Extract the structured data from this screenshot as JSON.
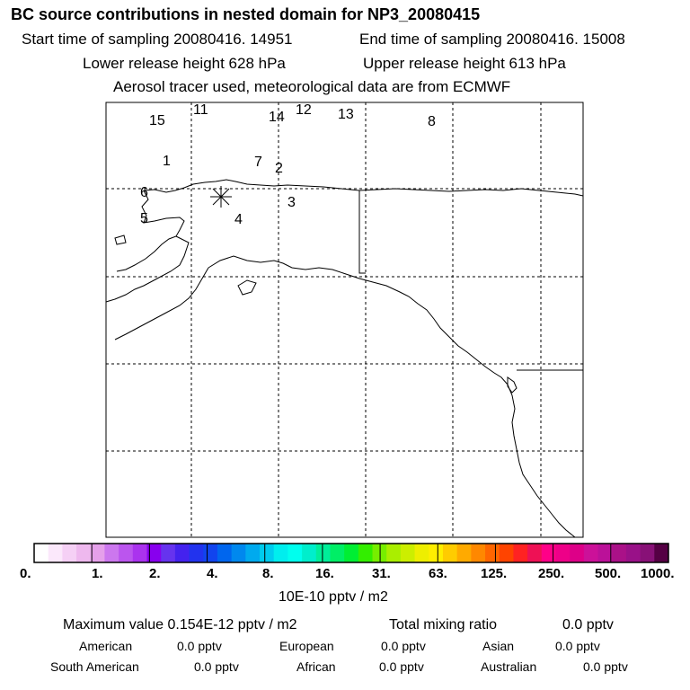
{
  "header": {
    "title": "BC  source contributions in nested domain for NP3_20080415",
    "start_time": "Start time of sampling 20080416. 14951",
    "end_time": "End time of sampling 20080416. 15008",
    "lower_height": "Lower release height  628 hPa",
    "upper_height": "Upper release height  613 hPa",
    "tracer_info": "Aerosol tracer used, meteorological data are from ECMWF"
  },
  "map": {
    "receptor_marker": "asterisk",
    "labels": [
      "15",
      "11",
      "14",
      "12",
      "13",
      "8",
      "1",
      "7",
      "2",
      "6",
      "3",
      "5",
      "4"
    ]
  },
  "colorbar": {
    "colors": [
      "#ffffff",
      "#fbe8fb",
      "#f5d0f5",
      "#eeb8ee",
      "#e5a0ea",
      "#cc77ee",
      "#bb55ee",
      "#aa33ee",
      "#8800ee",
      "#6633ee",
      "#4422ee",
      "#2233ee",
      "#1144ee",
      "#0066ee",
      "#0088ee",
      "#00aaee",
      "#00ccee",
      "#00eeee",
      "#00ffee",
      "#00eecc",
      "#00ee99",
      "#00ee66",
      "#00ee33",
      "#33ee00",
      "#77ee00",
      "#aaee00",
      "#ccee00",
      "#eeee00",
      "#ffee00",
      "#ffcc00",
      "#ffaa00",
      "#ff8800",
      "#ff6600",
      "#ff4400",
      "#ff2222",
      "#ee1155",
      "#ff0088",
      "#ee0088",
      "#dd0088",
      "#cc1199",
      "#bb1199",
      "#aa1188",
      "#991188",
      "#881177",
      "#550044"
    ],
    "ticks": [
      "0.",
      "1.",
      "2.",
      "4.",
      "8.",
      "16.",
      "31.",
      "63.",
      "125.",
      "250.",
      "500.",
      "1000."
    ],
    "unit": "10E-10 pptv / m2"
  },
  "stats": {
    "max_value": "Maximum value  0.154E-12 pptv / m2",
    "total_label": "Total mixing ratio",
    "total_value": "0.0 pptv",
    "american_label": "American",
    "american_value": "0.0 pptv",
    "european_label": "European",
    "european_value": "0.0 pptv",
    "asian_label": "Asian",
    "asian_value": "0.0 pptv",
    "south_american_label": "South American",
    "south_american_value": "0.0 pptv",
    "african_label": "African",
    "african_value": "0.0 pptv",
    "australian_label": "Australian",
    "australian_value": "0.0 pptv"
  }
}
